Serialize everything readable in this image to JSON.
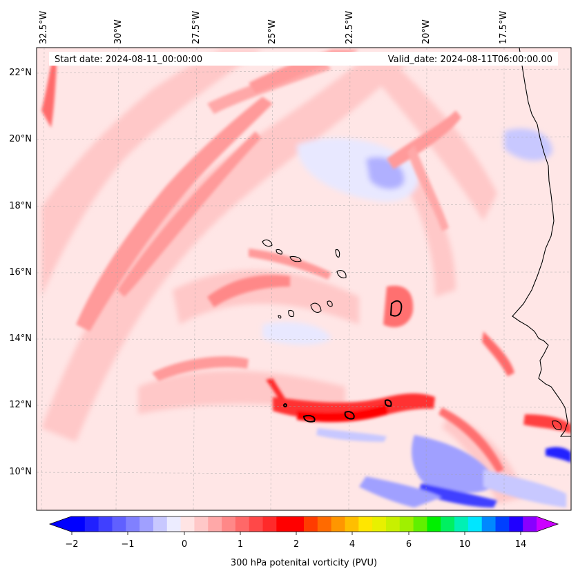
{
  "map": {
    "variable_label": "300 hPa potenital vorticity (PVU)",
    "start_date_text": "Start date: 2024-08-11_00:00:00",
    "valid_date_text": "Valid_date: 2024-08-11T06:00:00.00",
    "lon_labels": [
      "32.5°W",
      "30°W",
      "27.5°W",
      "25°W",
      "22.5°W",
      "20°W",
      "17.5°W"
    ],
    "lat_labels": [
      "22°N",
      "20°N",
      "18°N",
      "16°N",
      "14°N",
      "12°N",
      "10°N"
    ]
  },
  "colorbar": {
    "tick_labels": [
      "−2",
      "−1",
      "0",
      "1",
      "2",
      "4",
      "6",
      "10",
      "14"
    ],
    "colors": [
      "#0000ff",
      "#2020ff",
      "#4040ff",
      "#6060ff",
      "#8080ff",
      "#a0a0ff",
      "#c8c8ff",
      "#ececff",
      "#ffe4e4",
      "#ffc8c8",
      "#ffa8a8",
      "#ff8888",
      "#ff6868",
      "#ff4848",
      "#ff2a2a",
      "#ff0000",
      "#ff0000",
      "#ff3c00",
      "#ff6a00",
      "#ff9600",
      "#ffbe00",
      "#ffe600",
      "#e8f000",
      "#c8f000",
      "#a0f000",
      "#60f000",
      "#00f000",
      "#00f060",
      "#00f0b4",
      "#00e6ff",
      "#0088ff",
      "#0040ff",
      "#2000ff",
      "#8800ff"
    ],
    "min_color": "#0000ff",
    "max_color": "#cc00ff"
  }
}
